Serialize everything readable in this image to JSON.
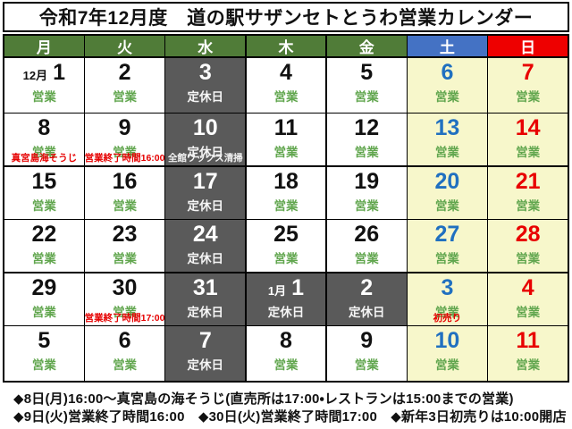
{
  "title": "令和7年12月度　道の駅サザンセトとうわ営業カレンダー",
  "labels": {
    "open": "営業",
    "closed": "定休日"
  },
  "colors": {
    "weekday_header_bg": "#507c38",
    "saturday_header_bg": "#4472c4",
    "sunday_header_bg": "#ee0000",
    "closed_cell_bg": "#5a5a5a",
    "weekend_cell_bg": "#f7f7cb",
    "open_text_green": "#61a64e",
    "saturday_date_blue": "#2070c0",
    "sunday_date_red": "#e80000",
    "note_red": "#e60000"
  },
  "weekday_header": [
    {
      "label": "月",
      "type": "weekday"
    },
    {
      "label": "火",
      "type": "weekday"
    },
    {
      "label": "水",
      "type": "weekday"
    },
    {
      "label": "木",
      "type": "weekday"
    },
    {
      "label": "金",
      "type": "weekday"
    },
    {
      "label": "土",
      "type": "saturday"
    },
    {
      "label": "日",
      "type": "sunday"
    }
  ],
  "weeks": [
    [
      {
        "prefix": "12月",
        "day": "1",
        "status": "営業"
      },
      {
        "day": "2",
        "status": "営業"
      },
      {
        "day": "3",
        "status": "定休日"
      },
      {
        "day": "4",
        "status": "営業"
      },
      {
        "day": "5",
        "status": "営業"
      },
      {
        "day": "6",
        "status": "営業"
      },
      {
        "day": "7",
        "status": "営業"
      }
    ],
    [
      {
        "day": "8",
        "status": "営業",
        "note": "真宮島海そうじ"
      },
      {
        "day": "9",
        "status": "営業",
        "note": "営業終了時間16:00"
      },
      {
        "day": "10",
        "status": "定休日",
        "note": "全館ワックス清掃",
        "note_style": "light"
      },
      {
        "day": "11",
        "status": "営業"
      },
      {
        "day": "12",
        "status": "営業"
      },
      {
        "day": "13",
        "status": "営業"
      },
      {
        "day": "14",
        "status": "営業"
      }
    ],
    [
      {
        "day": "15",
        "status": "営業"
      },
      {
        "day": "16",
        "status": "営業"
      },
      {
        "day": "17",
        "status": "定休日"
      },
      {
        "day": "18",
        "status": "営業"
      },
      {
        "day": "19",
        "status": "営業"
      },
      {
        "day": "20",
        "status": "営業"
      },
      {
        "day": "21",
        "status": "営業"
      }
    ],
    [
      {
        "day": "22",
        "status": "営業"
      },
      {
        "day": "23",
        "status": "営業"
      },
      {
        "day": "24",
        "status": "定休日"
      },
      {
        "day": "25",
        "status": "営業"
      },
      {
        "day": "26",
        "status": "営業"
      },
      {
        "day": "27",
        "status": "営業"
      },
      {
        "day": "28",
        "status": "営業"
      }
    ],
    [
      {
        "day": "29",
        "status": "営業"
      },
      {
        "day": "30",
        "status": "営業",
        "note": "営業終了時間17:00"
      },
      {
        "day": "31",
        "status": "定休日"
      },
      {
        "prefix": "1月",
        "day": "1",
        "status": "定休日"
      },
      {
        "day": "2",
        "status": "定休日"
      },
      {
        "day": "3",
        "status": "営業",
        "note": "初売り"
      },
      {
        "day": "4",
        "status": "営業"
      }
    ],
    [
      {
        "day": "5",
        "status": "営業"
      },
      {
        "day": "6",
        "status": "営業"
      },
      {
        "day": "7",
        "status": "定休日"
      },
      {
        "day": "8",
        "status": "営業"
      },
      {
        "day": "9",
        "status": "営業"
      },
      {
        "day": "10",
        "status": "営業"
      },
      {
        "day": "11",
        "status": "営業"
      }
    ]
  ],
  "footnotes": [
    "◆8日(月)16:00～真宮島の海そうじ(直売所は17:00・レストランは15:00までの営業)",
    "◆9日(火)営業終了時間16:00　◆30日(火)営業終了時間17:00　◆新年3日初売りは10:00開店"
  ]
}
